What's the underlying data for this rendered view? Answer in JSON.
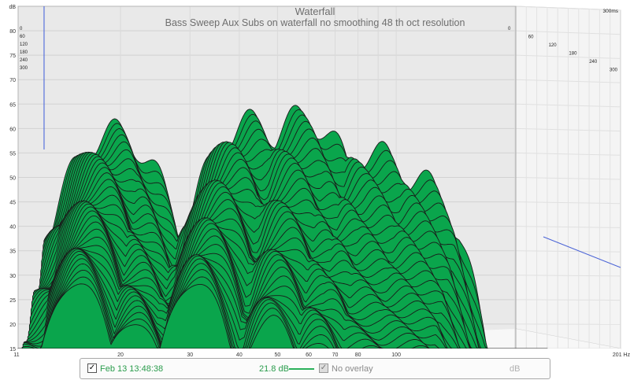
{
  "chart_data": {
    "type": "waterfall",
    "title": "Waterfall",
    "subtitle": "Bass Sweep Aux Subs on waterfall no smoothing 48 th oct resolution",
    "ylabel": "dB",
    "xlabel_unit": "Hz",
    "xscale": "log",
    "xlim": [
      11,
      201
    ],
    "ylim": [
      15,
      85
    ],
    "x_ticks": [
      "11",
      "20",
      "30",
      "40",
      "50",
      "60",
      "70",
      "80",
      "100",
      "201 Hz"
    ],
    "x_tick_values": [
      11,
      20,
      30,
      40,
      50,
      60,
      70,
      80,
      100,
      201
    ],
    "y_ticks": [
      85,
      80,
      75,
      70,
      65,
      60,
      55,
      50,
      45,
      40,
      35,
      30,
      25,
      20,
      15
    ],
    "y_tick_labels": [
      "dB",
      "80",
      "75",
      "70",
      "65",
      "60",
      "55",
      "50",
      "45",
      "40",
      "35",
      "30",
      "25",
      "20",
      "15"
    ],
    "time_unit": "ms",
    "time_max_label": "300ms",
    "time_ticks": [
      "0",
      "60",
      "120",
      "180",
      "240",
      "300"
    ],
    "time_ticks_left": [
      "0",
      "60",
      "120",
      "180",
      "240",
      "300"
    ],
    "fill_color": "#0aa54c",
    "edge_color": "#1a1a1a",
    "grid": true,
    "slices": 40,
    "front_slice_peaks": [
      {
        "freq": 15.5,
        "db": 29
      },
      {
        "freq": 21.5,
        "db": 21
      },
      {
        "freq": 31,
        "db": 29
      },
      {
        "freq": 48,
        "db": 21
      },
      {
        "freq": 62,
        "db": 17
      }
    ],
    "back_slice_peaks": [
      {
        "freq": 16,
        "db": 59
      },
      {
        "freq": 36,
        "db": 61
      },
      {
        "freq": 48,
        "db": 62
      },
      {
        "freq": 72,
        "db": 55
      },
      {
        "freq": 90,
        "db": 50
      }
    ],
    "cursor_freq": 12.8
  },
  "legend": {
    "checked_mark": "✓",
    "measurement_label": "Feb 13 13:48:38",
    "value": "21.8 dB",
    "overlay_label": "No overlay",
    "unit": "dB",
    "line_color": "#2bb05a"
  }
}
